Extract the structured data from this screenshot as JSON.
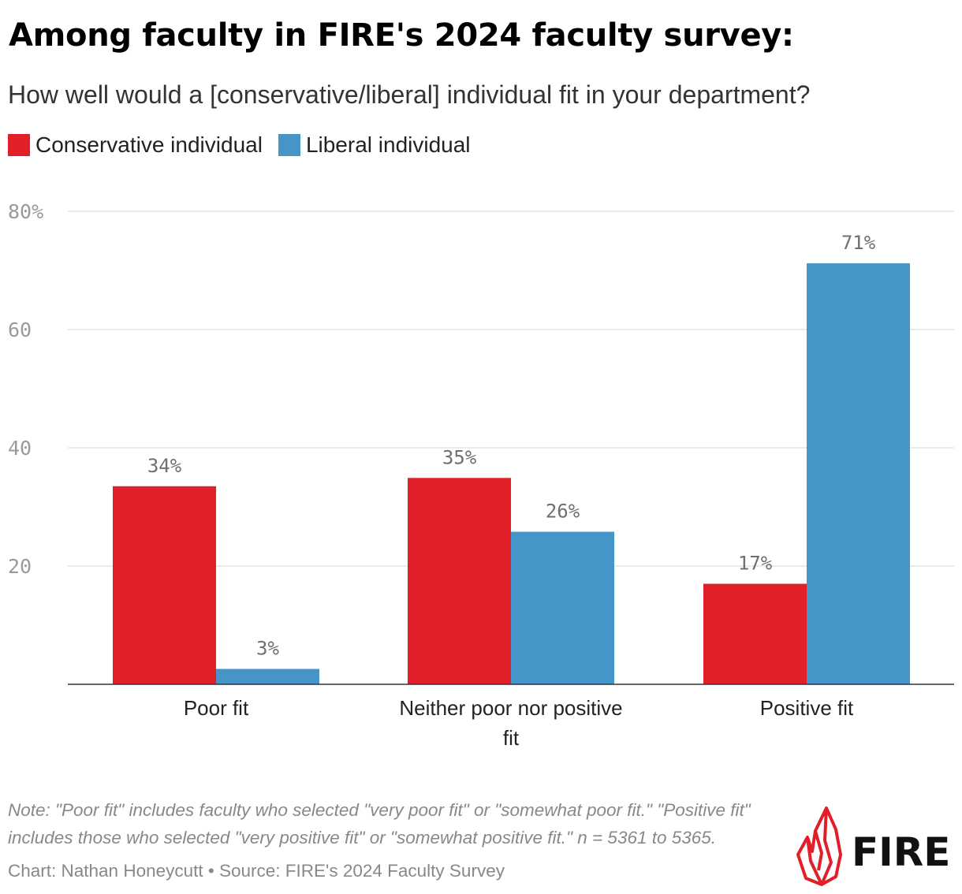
{
  "header": {
    "title": "Among faculty in FIRE's 2024 faculty survey:",
    "subtitle": "How well would a [conservative/liberal] individual fit in your department?"
  },
  "legend": [
    {
      "label": "Conservative individual",
      "color": "#e01f29"
    },
    {
      "label": "Liberal individual",
      "color": "#4595c8"
    }
  ],
  "chart_data": {
    "type": "bar",
    "title": "Among faculty in FIRE's 2024 faculty survey:",
    "subtitle": "How well would a [conservative/liberal] individual fit in your department?",
    "categories": [
      "Poor fit",
      "Neither poor nor positive fit",
      "Positive fit"
    ],
    "category_lines": [
      [
        "Poor fit"
      ],
      [
        "Neither poor nor positive",
        "fit"
      ],
      [
        "Positive fit"
      ]
    ],
    "series": [
      {
        "name": "Conservative individual",
        "color": "#e01f29",
        "values": [
          33.5,
          34.9,
          17.0
        ],
        "labels": [
          "34%",
          "35%",
          "17%"
        ]
      },
      {
        "name": "Liberal individual",
        "color": "#4595c8",
        "values": [
          2.6,
          25.8,
          71.2
        ],
        "labels": [
          "3%",
          "26%",
          "71%"
        ]
      }
    ],
    "ylim": [
      0,
      80
    ],
    "yticks": [
      20,
      40,
      60,
      80
    ],
    "ytick_labels": [
      "20",
      "40",
      "60",
      "80%"
    ],
    "xlabel": "",
    "ylabel": "",
    "grid": true,
    "legend_position": "top-left"
  },
  "footer": {
    "note_line1": "Note: \"Poor fit\" includes faculty who selected \"very poor fit\" or \"somewhat poor fit.\" \"Positive fit\"",
    "note_line2": "includes those who selected \"very positive fit\" or \"somewhat positive fit.\" n = 5361 to 5365.",
    "credit": "Chart: Nathan Honeycutt • Source: FIRE's 2024 Faculty Survey"
  },
  "logo": {
    "text": "FIRE",
    "color": "#e01f29"
  }
}
